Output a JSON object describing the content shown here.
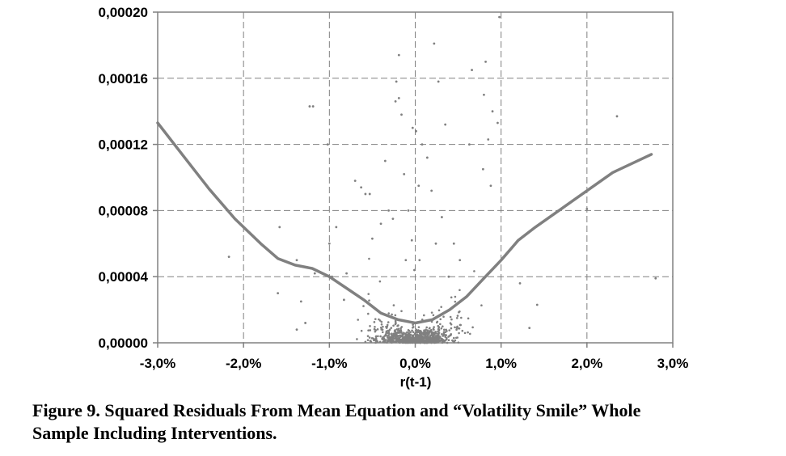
{
  "chart_data": {
    "type": "scatter",
    "title": "",
    "xlabel": "r(t-1)",
    "ylabel": "",
    "xlim": [
      -0.03,
      0.03
    ],
    "ylim": [
      0,
      0.0002
    ],
    "x_ticks": [
      -0.03,
      -0.02,
      -0.01,
      0,
      0.01,
      0.02,
      0.03
    ],
    "x_tick_labels": [
      "-3,0%",
      "-2,0%",
      "-1,0%",
      "0,0%",
      "1,0%",
      "2,0%",
      "3,0%"
    ],
    "y_ticks": [
      0,
      4e-05,
      8e-05,
      0.00012,
      0.00016,
      0.0002
    ],
    "y_tick_labels": [
      "0,00000",
      "0,00004",
      "0,00008",
      "0,00012",
      "0,00016",
      "0,00020"
    ],
    "grid": true,
    "series": [
      {
        "name": "Squared residuals",
        "kind": "points",
        "color": "#808080",
        "points": [
          [
            -0.0217,
            5.2e-05
          ],
          [
            -0.0158,
            7e-05
          ],
          [
            -0.016,
            3e-05
          ],
          [
            -0.0138,
            5e-05
          ],
          [
            -0.0133,
            2.5e-05
          ],
          [
            -0.0123,
            0.000143
          ],
          [
            -0.0119,
            0.000143
          ],
          [
            -0.0117,
            4.2e-05
          ],
          [
            -0.0128,
            1.2e-05
          ],
          [
            -0.0138,
            8e-06
          ],
          [
            -0.0102,
            0.00012
          ],
          [
            -0.01,
            6e-05
          ],
          [
            -0.0097,
            4e-05
          ],
          [
            -0.0092,
            7e-05
          ],
          [
            -0.0083,
            2.6e-05
          ],
          [
            -0.008,
            4.2e-05
          ],
          [
            -0.007,
            9.8e-05
          ],
          [
            -0.0063,
            9.4e-05
          ],
          [
            -0.0058,
            9e-05
          ],
          [
            -0.0053,
            9e-05
          ],
          [
            -0.005,
            6.3e-05
          ],
          [
            -0.004,
            7.2e-05
          ],
          [
            -0.0035,
            0.00011
          ],
          [
            -0.0031,
            8e-05
          ],
          [
            -0.0026,
            7.5e-05
          ],
          [
            -0.0022,
            0.000158
          ],
          [
            -0.0023,
            0.000146
          ],
          [
            -0.0019,
            0.000148
          ],
          [
            -0.0019,
            0.000174
          ],
          [
            -0.0016,
            0.000138
          ],
          [
            -0.0013,
            0.000102
          ],
          [
            -0.0011,
            5e-05
          ],
          [
            -0.0008,
            8e-05
          ],
          [
            -0.0004,
            6.2e-05
          ],
          [
            -0.0003,
            0.00013
          ],
          [
            -0.0001,
            4.4e-05
          ],
          [
            0.0001,
            0.000128
          ],
          [
            0.0004,
            9.5e-05
          ],
          [
            0.0005,
            5e-05
          ],
          [
            0.0008,
            0.00012
          ],
          [
            0.0014,
            0.000112
          ],
          [
            0.0019,
            9.2e-05
          ],
          [
            0.0022,
            0.000181
          ],
          [
            0.0024,
            6e-05
          ],
          [
            0.0027,
            0.000158
          ],
          [
            0.0031,
            7.6e-05
          ],
          [
            0.0035,
            0.000132
          ],
          [
            0.0039,
            4e-05
          ],
          [
            0.0045,
            6e-05
          ],
          [
            0.0052,
            5e-05
          ],
          [
            0.0063,
            0.00012
          ],
          [
            0.0066,
            0.000165
          ],
          [
            0.0079,
            0.000105
          ],
          [
            0.008,
            0.00015
          ],
          [
            0.0082,
            0.00017
          ],
          [
            0.0085,
            0.000123
          ],
          [
            0.009,
            0.00014
          ],
          [
            0.0096,
            0.000133
          ],
          [
            0.0098,
            0.000197
          ],
          [
            0.0088,
            9.5e-05
          ],
          [
            0.0122,
            3.6e-05
          ],
          [
            0.0133,
            9e-06
          ],
          [
            0.0142,
            2.3e-05
          ],
          [
            0.02,
            8.1e-05
          ],
          [
            0.0235,
            0.000137
          ],
          [
            0.028,
            3.9e-05
          ]
        ]
      },
      {
        "name": "Volatility smile",
        "kind": "curve",
        "color": "#808080",
        "x": [
          -0.03,
          -0.027,
          -0.024,
          -0.021,
          -0.018,
          -0.016,
          -0.014,
          -0.012,
          -0.01,
          -0.008,
          -0.006,
          -0.004,
          -0.002,
          0.0,
          0.002,
          0.004,
          0.006,
          0.008,
          0.01,
          0.012,
          0.014,
          0.017,
          0.02,
          0.023,
          0.0275
        ],
        "values": [
          0.000133,
          0.000113,
          9.3e-05,
          7.5e-05,
          6e-05,
          5.1e-05,
          4.7e-05,
          4.5e-05,
          4e-05,
          3.3e-05,
          2.6e-05,
          1.8e-05,
          1.4e-05,
          1.2e-05,
          1.4e-05,
          2e-05,
          2.8e-05,
          3.9e-05,
          5e-05,
          6.2e-05,
          7e-05,
          8.1e-05,
          9.2e-05,
          0.000103,
          0.000114
        ]
      }
    ]
  },
  "caption": {
    "line1": "Figure 9. Squared Residuals From Mean Equation and “Volatility Smile” Whole",
    "line2": "Sample Including Interventions."
  }
}
